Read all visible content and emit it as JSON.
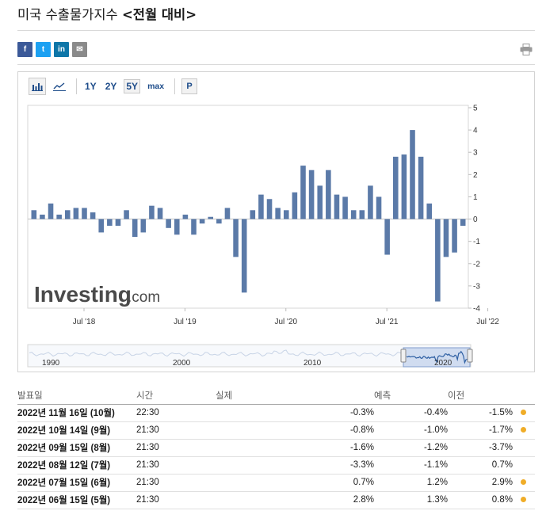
{
  "page": {
    "title_main": "미국 수출물가지수 ",
    "title_period": "<전월 대비>"
  },
  "share": {
    "facebook": "f",
    "twitter": "t",
    "linkedin": "in",
    "mail": "✉",
    "print_icon": "printer-icon"
  },
  "toolbar": {
    "bar_chart_icon": "bar-chart-icon",
    "line_chart_icon": "line-chart-icon",
    "ranges": [
      "1Y",
      "2Y",
      "5Y",
      "max"
    ],
    "active_range": "5Y",
    "p_button": "P"
  },
  "chart_data": {
    "type": "bar",
    "y_ticks": [
      "5",
      "4",
      "3",
      "2",
      "1",
      "0",
      "-1",
      "-2",
      "-3",
      "-4"
    ],
    "ylim": [
      -4,
      5
    ],
    "x_tick_labels": [
      "Jul '18",
      "Jul '19",
      "Jul '20",
      "Jul '21",
      "Jul '22"
    ],
    "x_tick_indices": [
      6,
      18,
      30,
      42,
      54
    ],
    "bar_color": "#5b7aa8",
    "values": [
      0.4,
      0.2,
      0.7,
      0.2,
      0.4,
      0.5,
      0.5,
      0.3,
      -0.6,
      -0.3,
      -0.3,
      0.4,
      -0.8,
      -0.6,
      0.6,
      0.5,
      -0.4,
      -0.7,
      0.2,
      -0.7,
      -0.2,
      0.1,
      -0.2,
      0.5,
      -1.7,
      -3.3,
      0.4,
      1.1,
      0.9,
      0.5,
      0.4,
      1.2,
      2.4,
      2.2,
      1.5,
      2.2,
      1.1,
      1.0,
      0.4,
      0.4,
      1.5,
      1.0,
      -1.6,
      2.8,
      2.9,
      4.0,
      2.8,
      0.7,
      -3.7,
      -1.7,
      -1.5,
      -0.3
    ],
    "logo": {
      "brand": "Investing",
      "suffix": ".com"
    },
    "navigator": {
      "labels": [
        "1990",
        "2000",
        "2010",
        "2020"
      ]
    }
  },
  "table": {
    "headers": {
      "release": "발표일",
      "time": "시간",
      "actual": "실제",
      "forecast": "예측",
      "previous": "이전"
    },
    "rows": [
      {
        "date": "2022년 11월 16일 (10월)",
        "time": "22:30",
        "actual": "-0.3%",
        "actual_class": "neg",
        "forecast": "-0.4%",
        "previous": "-1.5%",
        "previous_class": "pos",
        "revised": true
      },
      {
        "date": "2022년 10월 14일 (9월)",
        "time": "21:30",
        "actual": "-0.8%",
        "actual_class": "neg",
        "forecast": "-1.0%",
        "previous": "-1.7%",
        "previous_class": "pos",
        "revised": true
      },
      {
        "date": "2022년 09월 15일 (8월)",
        "time": "21:30",
        "actual": "-1.6%",
        "actual_class": "pos",
        "forecast": "-1.2%",
        "previous": "-3.7%",
        "previous_class": "",
        "revised": false
      },
      {
        "date": "2022년 08월 12일 (7월)",
        "time": "21:30",
        "actual": "-3.3%",
        "actual_class": "pos",
        "forecast": "-1.1%",
        "previous": "0.7%",
        "previous_class": "",
        "revised": false
      },
      {
        "date": "2022년 07월 15일 (6월)",
        "time": "21:30",
        "actual": "0.7%",
        "actual_class": "pos",
        "forecast": "1.2%",
        "previous": "2.9%",
        "previous_class": "neg",
        "revised": true
      },
      {
        "date": "2022년 06월 15일 (5월)",
        "time": "21:30",
        "actual": "2.8%",
        "actual_class": "neg",
        "forecast": "1.3%",
        "previous": "0.8%",
        "previous_class": "neg",
        "revised": true
      }
    ]
  }
}
